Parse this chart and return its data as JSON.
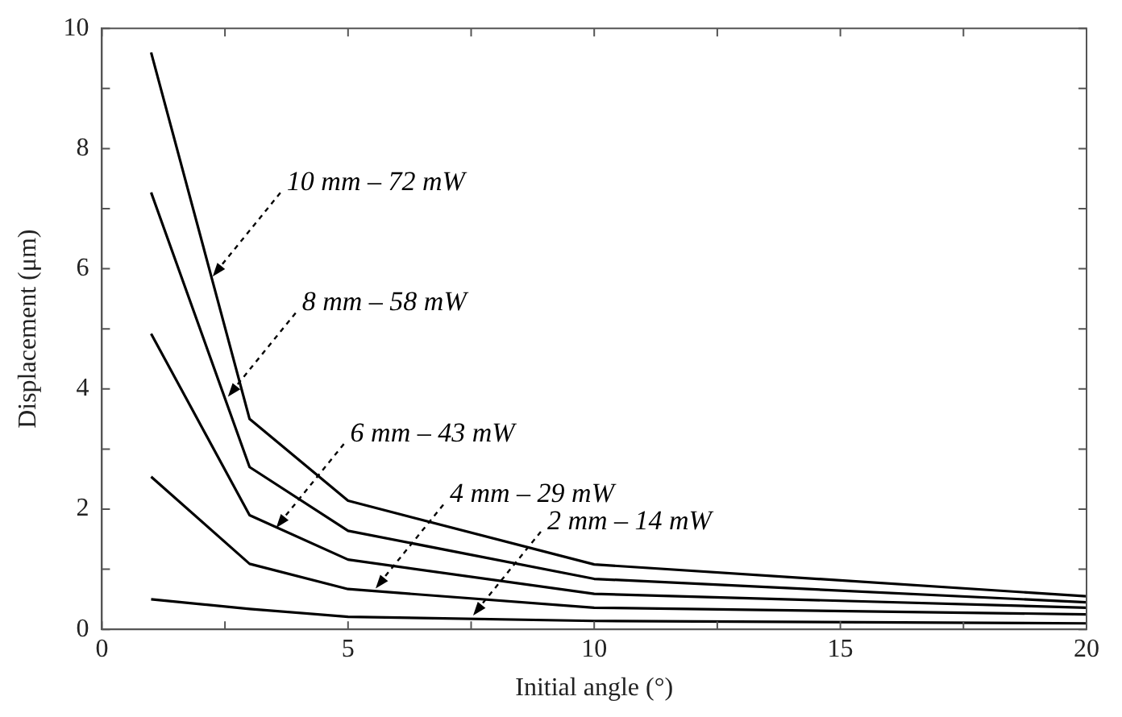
{
  "chart_data": {
    "type": "line",
    "xlabel": "Initial angle (°)",
    "ylabel": "Displacement (μm)",
    "x": [
      1,
      3,
      5,
      10,
      20
    ],
    "series": [
      {
        "color": "#000000",
        "values": [
          9.6,
          3.5,
          2.14,
          1.08,
          0.55
        ]
      },
      {
        "color": "#000000",
        "values": [
          7.27,
          2.7,
          1.64,
          0.84,
          0.45
        ]
      },
      {
        "color": "#000000",
        "values": [
          4.92,
          1.9,
          1.16,
          0.59,
          0.36
        ]
      },
      {
        "color": "#000000",
        "values": [
          2.54,
          1.09,
          0.67,
          0.36,
          0.25
        ]
      },
      {
        "color": "#000000",
        "values": [
          0.5,
          0.34,
          0.21,
          0.14,
          0.1
        ]
      }
    ],
    "annotations": [
      {
        "text": "10 mm – 72 mW",
        "x": 2.25,
        "y": 5.87
      },
      {
        "text": "8 mm – 58 mW",
        "x": 2.56,
        "y": 3.87
      },
      {
        "text": "6 mm – 43 mW",
        "x": 3.54,
        "y": 1.69
      },
      {
        "text": "4 mm – 29 mW",
        "x": 5.56,
        "y": 0.68
      },
      {
        "text": "2 mm – 14 mW",
        "x": 7.54,
        "y": 0.23
      }
    ],
    "xlim": [
      0,
      20
    ],
    "xticks": [
      0,
      {
        "value": 2.5,
        "label": null
      },
      5,
      {
        "value": 7.5,
        "label": null
      },
      10,
      {
        "value": 12.5,
        "label": null
      },
      15,
      {
        "value": 17.5,
        "label": null
      },
      20
    ],
    "ylim": [
      0,
      10
    ],
    "yticks": [
      0,
      {
        "value": 1,
        "label": null
      },
      2,
      {
        "value": 3,
        "label": null
      },
      4,
      {
        "value": 5,
        "label": null
      },
      6,
      {
        "value": 7,
        "label": null
      },
      8,
      {
        "value": 9,
        "label": null
      },
      10
    ],
    "grid": false,
    "legend": false,
    "marker": "none",
    "line_style": "solid"
  }
}
